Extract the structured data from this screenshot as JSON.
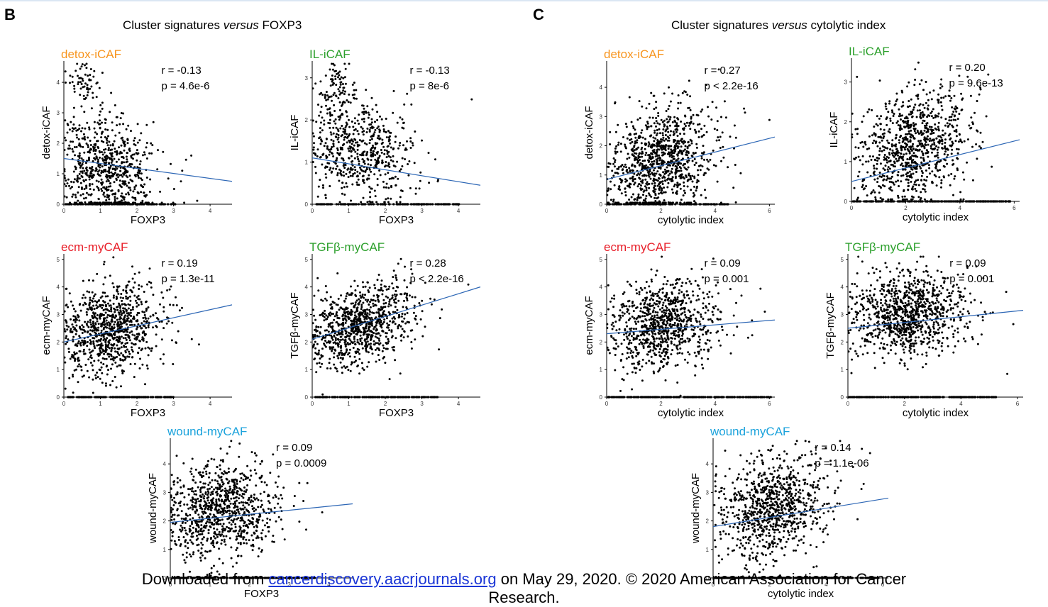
{
  "panel_letters": [
    "B",
    "C"
  ],
  "section_titles": [
    {
      "before": "Cluster signatures ",
      "italic": "versus",
      "after": " FOXP3"
    },
    {
      "before": "Cluster signatures ",
      "italic": "versus",
      "after": " cytolytic index"
    }
  ],
  "footer": {
    "prefix": "Downloaded from ",
    "link": "cancerdiscovery.aacrjournals.org",
    "suffix": " on May 29, 2020. © 2020 American Association for Cancer",
    "line2": "Research."
  },
  "colors": {
    "detox": "#f7941d",
    "il": "#2ca02c",
    "ecm": "#e8202a",
    "tgf": "#2ca02c",
    "wound": "#1ca3dc",
    "fit_line": "#2c66b5",
    "points": "#000000"
  },
  "chart_data": [
    {
      "id": "b1",
      "type": "scatter",
      "title": "detox-iCAF",
      "title_color": "detox",
      "ylabel": "detox-iCAF",
      "xlabel": "FOXP3",
      "xlim": [
        0,
        4.6
      ],
      "ylim": [
        0,
        4.7
      ],
      "xticks": [
        0,
        1,
        2,
        3,
        4
      ],
      "yticks": [
        0,
        1,
        2,
        3,
        4
      ],
      "r": "r = -0.13",
      "p": "p = 4.6e-6",
      "fit": [
        [
          0,
          1.5
        ],
        [
          4.6,
          0.75
        ]
      ],
      "cloud": {
        "xm": 1.2,
        "xs": 0.75,
        "xmax": 4.4,
        "ym": 1.2,
        "ys": 0.85,
        "slope": -0.16,
        "n": 700,
        "hix": 0.6,
        "hiy": 4.0,
        "nhi": 60,
        "zeroxmax": 3.0,
        "zn": 120
      },
      "seed": 11
    },
    {
      "id": "b2",
      "type": "scatter",
      "title": "IL-iCAF",
      "title_color": "il",
      "ylabel": "IL-iCAF",
      "xlabel": "FOXP3",
      "xlim": [
        0,
        4.6
      ],
      "ylim": [
        0,
        3.4
      ],
      "xticks": [
        0,
        1,
        2,
        3,
        4
      ],
      "yticks": [
        0,
        1,
        2,
        3
      ],
      "r": "r = -0.13",
      "p": "p = 8e-6",
      "fit": [
        [
          0,
          1.1
        ],
        [
          4.6,
          0.45
        ]
      ],
      "cloud": {
        "xm": 1.3,
        "xs": 0.8,
        "xmax": 4.4,
        "ym": 1.25,
        "ys": 0.6,
        "slope": -0.1,
        "n": 600,
        "hix": 0.6,
        "hiy": 2.7,
        "nhi": 80,
        "zeroxmax": 4.0,
        "zn": 150
      },
      "seed": 23
    },
    {
      "id": "b3",
      "type": "scatter",
      "title": "ecm-myCAF",
      "title_color": "ecm",
      "ylabel": "ecm-myCAF",
      "xlabel": "FOXP3",
      "xlim": [
        0,
        4.6
      ],
      "ylim": [
        0,
        5.2
      ],
      "xticks": [
        0,
        1,
        2,
        3,
        4
      ],
      "yticks": [
        0,
        1,
        2,
        3,
        4,
        5
      ],
      "r": "r = 0.19",
      "p": "p = 1.3e-11",
      "fit": [
        [
          0,
          2.0
        ],
        [
          4.6,
          3.35
        ]
      ],
      "cloud": {
        "xm": 1.3,
        "xs": 0.8,
        "xmax": 4.4,
        "ym": 2.45,
        "ys": 0.8,
        "slope": 0.3,
        "n": 900,
        "hix": 0,
        "hiy": 0,
        "nhi": 0,
        "zeroxmax": 3.0,
        "zn": 130
      },
      "seed": 37
    },
    {
      "id": "b4",
      "type": "scatter",
      "title": "TGFβ-myCAF",
      "title_color": "tgf",
      "ylabel": "TGFβ-myCAF",
      "xlabel": "FOXP3",
      "xlim": [
        0,
        4.6
      ],
      "ylim": [
        0,
        5.2
      ],
      "xticks": [
        0,
        1,
        2,
        3,
        4
      ],
      "yticks": [
        0,
        1,
        2,
        3,
        4,
        5
      ],
      "r": "r = 0.28",
      "p": "p < 2.2e-16",
      "fit": [
        [
          0,
          2.1
        ],
        [
          4.6,
          4.0
        ]
      ],
      "cloud": {
        "xm": 1.3,
        "xs": 0.8,
        "xmax": 4.4,
        "ym": 2.6,
        "ys": 0.75,
        "slope": 0.4,
        "n": 900,
        "hix": 0,
        "hiy": 0,
        "nhi": 0,
        "zeroxmax": 3.4,
        "zn": 130
      },
      "seed": 41
    },
    {
      "id": "b5",
      "type": "scatter",
      "title": "wound-myCAF",
      "title_color": "wound",
      "ylabel": "wound-myCAF",
      "xlabel": "FOXP3",
      "xlim": [
        0,
        4.6
      ],
      "ylim": [
        0,
        4.9
      ],
      "xticks": [
        0,
        1,
        2,
        3,
        4
      ],
      "yticks": [
        0,
        1,
        2,
        3,
        4
      ],
      "r": "r = 0.09",
      "p": "p = 0.0009",
      "fit": [
        [
          0,
          1.95
        ],
        [
          4.6,
          2.6
        ]
      ],
      "cloud": {
        "xm": 1.3,
        "xs": 0.8,
        "xmax": 4.4,
        "ym": 2.35,
        "ys": 0.85,
        "slope": 0.12,
        "n": 900,
        "hix": 0,
        "hiy": 0,
        "nhi": 0,
        "zeroxmax": 3.6,
        "zn": 200
      },
      "seed": 53
    },
    {
      "id": "c1",
      "type": "scatter",
      "title": "detox-iCAF",
      "title_color": "detox",
      "ylabel": "detox-iCAF",
      "xlabel": "cytolytic index",
      "xlim": [
        0,
        6.2
      ],
      "ylim": [
        0,
        4.9
      ],
      "xticks": [
        0,
        2,
        4,
        6
      ],
      "yticks": [
        0,
        1,
        2,
        3,
        4
      ],
      "r": "r = 0.27",
      "p": "p < 2.2e-16",
      "fit": [
        [
          0,
          0.85
        ],
        [
          6.2,
          2.3
        ]
      ],
      "cloud": {
        "xm": 2.0,
        "xs": 1.1,
        "xmax": 6.0,
        "ym": 1.45,
        "ys": 0.95,
        "slope": 0.24,
        "n": 1000,
        "hix": 0,
        "hiy": 0,
        "nhi": 0,
        "zeroxmax": 4.5,
        "zn": 130
      },
      "seed": 61
    },
    {
      "id": "c2",
      "type": "scatter",
      "title": "IL-iCAF",
      "title_color": "il",
      "ylabel": "IL-iCAF",
      "xlabel": "cytolytic index",
      "xlim": [
        0,
        6.2
      ],
      "ylim": [
        0,
        3.6
      ],
      "xticks": [
        0,
        2,
        4,
        6
      ],
      "yticks": [
        0,
        1,
        2,
        3
      ],
      "r": "r = 0.20",
      "p": "p = 9.6e-13",
      "fit": [
        [
          0,
          0.5
        ],
        [
          6.2,
          1.55
        ]
      ],
      "cloud": {
        "xm": 2.3,
        "xs": 1.1,
        "xmax": 6.0,
        "ym": 1.35,
        "ys": 0.7,
        "slope": 0.2,
        "n": 900,
        "hix": 0,
        "hiy": 0,
        "nhi": 0,
        "zeroxmax": 5.8,
        "zn": 200
      },
      "seed": 71
    },
    {
      "id": "c3",
      "type": "scatter",
      "title": "ecm-myCAF",
      "title_color": "ecm",
      "ylabel": "ecm-myCAF",
      "xlabel": "cytolytic index",
      "xlim": [
        0,
        6.2
      ],
      "ylim": [
        0,
        5.2
      ],
      "xticks": [
        0,
        2,
        4,
        6
      ],
      "yticks": [
        0,
        1,
        2,
        3,
        4,
        5
      ],
      "r": "r = 0.09",
      "p": "p = 0.001",
      "fit": [
        [
          0,
          2.3
        ],
        [
          6.2,
          2.8
        ]
      ],
      "cloud": {
        "xm": 2.1,
        "xs": 1.1,
        "xmax": 6.0,
        "ym": 2.6,
        "ys": 0.8,
        "slope": 0.1,
        "n": 900,
        "hix": 0,
        "hiy": 0,
        "nhi": 0,
        "zeroxmax": 6.0,
        "zn": 220
      },
      "seed": 83
    },
    {
      "id": "c4",
      "type": "scatter",
      "title": "TGFβ-myCAF",
      "title_color": "tgf",
      "ylabel": "TGFβ-myCAF",
      "xlabel": "cytolytic index",
      "xlim": [
        0,
        6.2
      ],
      "ylim": [
        0,
        5.2
      ],
      "xticks": [
        0,
        2,
        4,
        6
      ],
      "yticks": [
        0,
        1,
        2,
        3,
        4,
        5
      ],
      "r": "r = 0.09",
      "p": "p = 0.001",
      "fit": [
        [
          0,
          2.5
        ],
        [
          6.2,
          3.15
        ]
      ],
      "cloud": {
        "xm": 2.2,
        "xs": 1.1,
        "xmax": 6.0,
        "ym": 3.0,
        "ys": 0.75,
        "slope": 0.1,
        "n": 1000,
        "hix": 0,
        "hiy": 0,
        "nhi": 0,
        "zeroxmax": 5.2,
        "zn": 200
      },
      "seed": 97
    },
    {
      "id": "c5",
      "type": "scatter",
      "title": "wound-myCAF",
      "title_color": "wound",
      "ylabel": "wound-myCAF",
      "xlabel": "cytolytic index",
      "xlim": [
        0,
        6.2
      ],
      "ylim": [
        0,
        4.9
      ],
      "xticks": [
        0,
        2,
        4,
        6
      ],
      "yticks": [
        0,
        1,
        2,
        3,
        4
      ],
      "r": "r = 0.14",
      "p": "p = 1.1e-06",
      "fit": [
        [
          0,
          1.8
        ],
        [
          6.2,
          2.8
        ]
      ],
      "cloud": {
        "xm": 2.1,
        "xs": 1.1,
        "xmax": 6.0,
        "ym": 2.5,
        "ys": 0.85,
        "slope": 0.16,
        "n": 900,
        "hix": 0,
        "hiy": 0,
        "nhi": 0,
        "zeroxmax": 5.8,
        "zn": 220
      },
      "seed": 109
    }
  ]
}
